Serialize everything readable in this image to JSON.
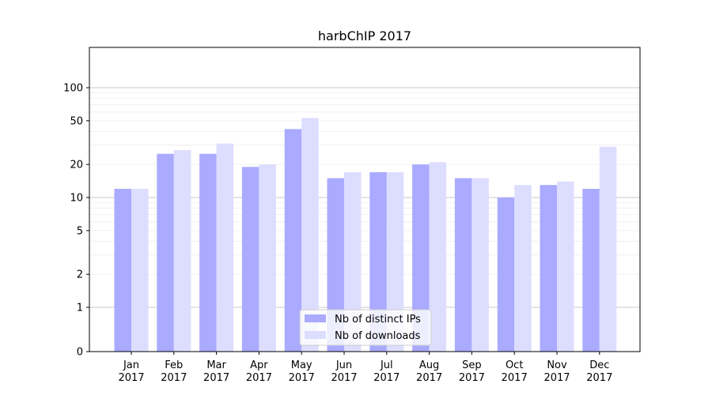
{
  "chart_data": {
    "type": "bar",
    "title": "harbChIP 2017",
    "xlabel": "",
    "ylabel": "",
    "yscale": "symlog",
    "ylim": [
      0,
      110
    ],
    "ytick_labels": [
      "0",
      "1",
      "2",
      "5",
      "10",
      "20",
      "50",
      "100"
    ],
    "grid": "horizontal",
    "legend_position": "lower center",
    "categories": [
      [
        "Jan",
        "2017"
      ],
      [
        "Feb",
        "2017"
      ],
      [
        "Mar",
        "2017"
      ],
      [
        "Apr",
        "2017"
      ],
      [
        "May",
        "2017"
      ],
      [
        "Jun",
        "2017"
      ],
      [
        "Jul",
        "2017"
      ],
      [
        "Aug",
        "2017"
      ],
      [
        "Sep",
        "2017"
      ],
      [
        "Oct",
        "2017"
      ],
      [
        "Nov",
        "2017"
      ],
      [
        "Dec",
        "2017"
      ]
    ],
    "series": [
      {
        "name": "Nb of distinct IPs",
        "color": "#aaaaff",
        "values": [
          12,
          25,
          25,
          19,
          42,
          15,
          17,
          20,
          15,
          10,
          13,
          12
        ]
      },
      {
        "name": "Nb of downloads",
        "color": "#ddddff",
        "values": [
          12,
          27,
          31,
          20,
          53,
          17,
          17,
          21,
          15,
          13,
          14,
          29
        ]
      }
    ]
  }
}
